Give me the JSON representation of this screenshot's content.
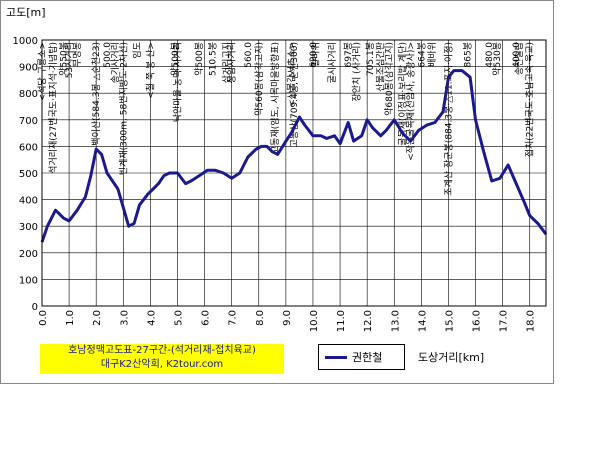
{
  "chart_data": {
    "type": "line",
    "ylabel": "고도[m]",
    "xlabel": "도상거리[km]",
    "ylim": [
      0,
      1000
    ],
    "xlim": [
      0,
      18.6
    ],
    "yticks": [
      "0",
      "100",
      "200",
      "300",
      "400",
      "500",
      "600",
      "700",
      "800",
      "900",
      "1000"
    ],
    "xticks": [
      "0.0",
      "1.0",
      "2.0",
      "3.0",
      "4.0",
      "5.0",
      "6.0",
      "7.0",
      "8.0",
      "9.0",
      "10.0",
      "11.0",
      "12.0",
      "13.0",
      "14.0",
      "15.0",
      "16.0",
      "17.0",
      "18.0"
    ],
    "grid": true,
    "series": [
      {
        "name": "권한철",
        "color": "#1a1a8c",
        "x": [
          0.0,
          0.2,
          0.5,
          0.8,
          1.0,
          1.3,
          1.6,
          1.8,
          2.0,
          2.2,
          2.4,
          2.6,
          2.8,
          3.0,
          3.2,
          3.4,
          3.6,
          3.9,
          4.1,
          4.3,
          4.5,
          4.7,
          5.0,
          5.3,
          5.5,
          5.8,
          6.1,
          6.4,
          6.7,
          7.0,
          7.3,
          7.6,
          7.9,
          8.1,
          8.3,
          8.5,
          8.7,
          9.0,
          9.2,
          9.5,
          9.7,
          10.0,
          10.3,
          10.5,
          10.8,
          11.0,
          11.3,
          11.5,
          11.8,
          12.0,
          12.2,
          12.5,
          12.7,
          13.0,
          13.3,
          13.6,
          13.9,
          14.2,
          14.5,
          14.8,
          15.0,
          15.2,
          15.5,
          15.8,
          16.0,
          16.3,
          16.6,
          16.9,
          17.2,
          17.5,
          17.8,
          18.0,
          18.3,
          18.6
        ],
        "y": [
          240,
          300,
          360,
          330,
          320,
          360,
          410,
          490,
          590,
          570,
          500,
          470,
          440,
          370,
          300,
          310,
          380,
          420,
          440,
          460,
          490,
          500,
          500,
          460,
          470,
          490,
          510,
          510,
          500,
          480,
          500,
          560,
          590,
          600,
          600,
          580,
          570,
          620,
          650,
          710,
          680,
          640,
          640,
          630,
          640,
          610,
          690,
          620,
          640,
          700,
          670,
          640,
          660,
          700,
          650,
          620,
          660,
          680,
          690,
          730,
          860,
          885,
          885,
          860,
          700,
          580,
          470,
          480,
          530,
          460,
          390,
          340,
          310,
          270
        ]
      }
    ],
    "annotations": [
      {
        "x": 0.0,
        "text": "<석당·구룡소>"
      },
      {
        "x": 0.4,
        "text": "석거리재(27번국도·표지석·기념탑)"
      },
      {
        "x": 0.8,
        "text": "약550봉"
      },
      {
        "x": 1.0,
        "text": "53시거리"
      },
      {
        "x": 1.3,
        "text": "무명봉"
      },
      {
        "x": 2.0,
        "text": "백이산(584.3봉·△순천23)"
      },
      {
        "x": 2.4,
        "text": "500.0"
      },
      {
        "x": 2.7,
        "text": "송기사거리"
      },
      {
        "x": 3.0,
        "text": "빈계재(300m, 58번지방도·2차선)"
      },
      {
        "x": 3.5,
        "text": "임도"
      },
      {
        "x": 4.0,
        "text": "<철 쭉 봉 산>"
      },
      {
        "x": 4.9,
        "text": "약500봉"
      },
      {
        "x": 5.0,
        "text": "낙안마을·농막 사거리"
      },
      {
        "x": 5.8,
        "text": "약500봉"
      },
      {
        "x": 6.3,
        "text": "510.5봉"
      },
      {
        "x": 6.8,
        "text": "삼거리고지"
      },
      {
        "x": 7.0,
        "text": "상암사거리"
      },
      {
        "x": 7.6,
        "text": "560.0"
      },
      {
        "x": 8.0,
        "text": "약560봉(삼각고지)"
      },
      {
        "x": 8.6,
        "text": "고동재(임도, 시목마을방향표)"
      },
      {
        "x": 9.2,
        "text": "<산불감시초소>"
      },
      {
        "x": 9.3,
        "text": "고동산(709.4봉, 순천300)"
      },
      {
        "x": 10.0,
        "text": "620.0"
      },
      {
        "x": 10.1,
        "text": "칼바위"
      },
      {
        "x": 10.7,
        "text": "굴시사거리"
      },
      {
        "x": 11.3,
        "text": "697봉"
      },
      {
        "x": 11.6,
        "text": "장안치 (사거리)"
      },
      {
        "x": 12.1,
        "text": "705.1봉"
      },
      {
        "x": 12.5,
        "text": "산불조심간판"
      },
      {
        "x": 12.8,
        "text": "약680봉(삼각고지)"
      },
      {
        "x": 13.3,
        "text": "굴목재(이정표·보리밥 계단)"
      },
      {
        "x": 13.6,
        "text": "<작은굴목재(선암사, 송광사)>"
      },
      {
        "x": 14.0,
        "text": "664봉"
      },
      {
        "x": 14.4,
        "text": "배바위"
      },
      {
        "x": 15.0,
        "text": "조계산 장군봉(884.3봉·△11.표지·이정)"
      },
      {
        "x": 15.7,
        "text": "865봉"
      },
      {
        "x": 16.5,
        "text": "480.0"
      },
      {
        "x": 16.8,
        "text": "약530봉"
      },
      {
        "x": 17.5,
        "text": "400.0"
      },
      {
        "x": 17.6,
        "text": "송전철탑"
      },
      {
        "x": 18.0,
        "text": "접치(22번국도·호남고속·육교)"
      }
    ]
  },
  "caption": {
    "line1": "호남정맥고도표-27구간-(석거리재-접치육교)",
    "line2": "대구K2산악회,  K2tour.com"
  }
}
